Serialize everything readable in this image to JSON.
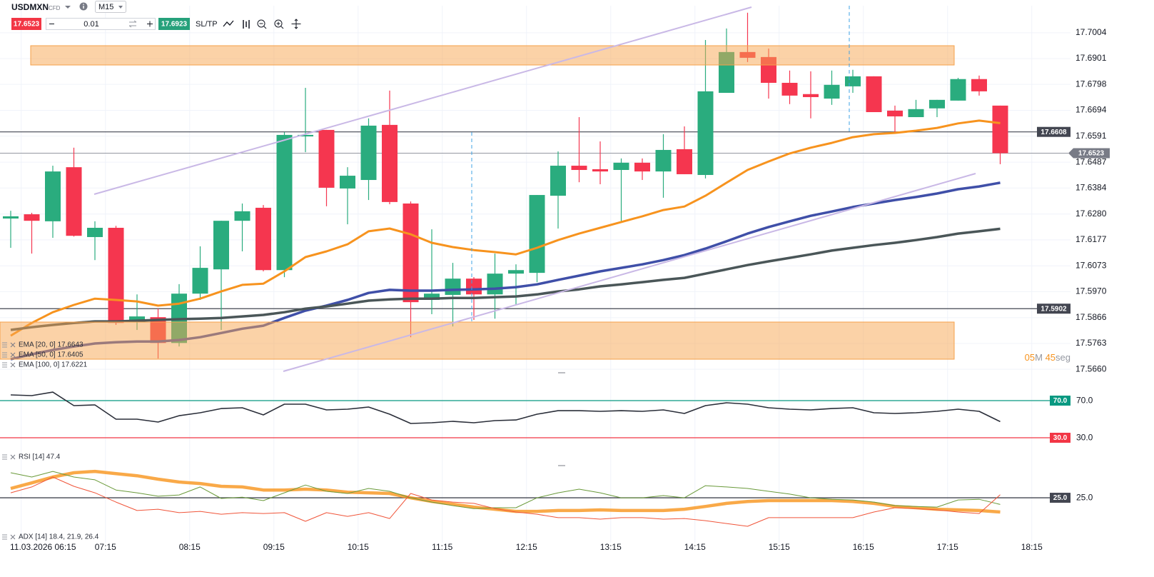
{
  "toolbar": {
    "symbol": "USDMXN",
    "instrument_type": "CFD",
    "timeframe": "M15",
    "sell_price": 17.6523,
    "lot_size": 0.01,
    "buy_price": 17.6923,
    "sl_tp": "SL/TP"
  },
  "countdown": [
    "05",
    "M",
    "45",
    "seg"
  ],
  "chart_data": [
    {
      "type": "candlestick",
      "categories": [
        "11.03.2026 06:15",
        null,
        null,
        null,
        "07:15",
        null,
        null,
        null,
        "08:15",
        null,
        null,
        null,
        "09:15",
        null,
        null,
        null,
        "10:15",
        null,
        null,
        null,
        "11:15",
        null,
        null,
        null,
        "12:15",
        null,
        null,
        null,
        "13:15",
        null,
        null,
        null,
        "14:15",
        null,
        null,
        null,
        "15:15",
        null,
        null,
        null,
        "16:15",
        null,
        null,
        null,
        "17:15",
        null,
        null,
        null,
        "18:15"
      ],
      "open": [
        17.6262,
        17.6279,
        17.6251,
        17.6467,
        17.6188,
        17.6225,
        17.5848,
        17.5868,
        17.5765,
        17.5962,
        17.6059,
        17.6253,
        17.6305,
        17.6056,
        17.659,
        17.6616,
        17.6382,
        17.6416,
        17.6636,
        17.6322,
        17.5937,
        17.5957,
        17.6022,
        17.5959,
        17.6042,
        17.6045,
        17.6353,
        17.6473,
        17.6459,
        17.6456,
        17.6485,
        17.645,
        17.6539,
        17.6436,
        17.6764,
        17.6927,
        17.6907,
        17.6804,
        17.6759,
        17.6741,
        17.679,
        17.683,
        17.6693,
        17.6667,
        17.6702,
        17.6733,
        17.6819,
        17.6713,
        null
      ],
      "high": [
        17.6293,
        17.6285,
        17.6473,
        17.6545,
        17.6251,
        17.6233,
        17.5959,
        17.5902,
        17.6,
        17.6151,
        17.6253,
        17.6322,
        17.6316,
        17.6607,
        17.6784,
        17.6616,
        17.6467,
        17.6662,
        17.6773,
        17.633,
        17.6219,
        17.6085,
        17.6028,
        17.6122,
        17.6079,
        17.6356,
        17.653,
        17.6667,
        17.657,
        17.6502,
        17.6502,
        17.6599,
        17.663,
        17.6975,
        17.7021,
        17.7084,
        17.6941,
        17.6853,
        17.685,
        17.6853,
        17.6856,
        17.683,
        17.6713,
        17.6736,
        17.6736,
        17.6824,
        17.6833,
        17.6713,
        null
      ],
      "low": [
        17.6145,
        17.6122,
        17.6185,
        17.619,
        17.6096,
        17.5837,
        17.5817,
        17.5703,
        17.5751,
        17.5937,
        17.5817,
        17.6131,
        17.6051,
        17.6028,
        17.6527,
        17.6311,
        17.6239,
        17.6336,
        17.6319,
        17.5788,
        17.588,
        17.5831,
        17.5857,
        17.5862,
        17.5919,
        17.6008,
        17.6222,
        17.6407,
        17.6399,
        17.6248,
        17.6416,
        17.6345,
        17.6439,
        17.6422,
        17.6764,
        17.6887,
        17.6741,
        17.6719,
        17.6662,
        17.6716,
        17.6764,
        17.6687,
        17.6604,
        17.6667,
        17.6667,
        17.6733,
        17.6753,
        17.6479,
        null
      ],
      "close": [
        17.6271,
        17.6253,
        17.645,
        17.6193,
        17.6225,
        17.5845,
        17.5871,
        17.5765,
        17.5962,
        17.6065,
        17.6253,
        17.6291,
        17.6056,
        17.6596,
        17.6596,
        17.6385,
        17.6433,
        17.6633,
        17.6328,
        17.5928,
        17.5962,
        17.6022,
        17.5959,
        17.6042,
        17.6056,
        17.6356,
        17.6473,
        17.6456,
        17.645,
        17.6485,
        17.645,
        17.6536,
        17.6439,
        17.677,
        17.6927,
        17.6904,
        17.6804,
        17.6753,
        17.6747,
        17.6796,
        17.683,
        17.6687,
        17.667,
        17.6699,
        17.6736,
        17.6819,
        17.677,
        17.6523,
        null
      ],
      "up_color": "#2aac7e",
      "down_color": "#f5364f",
      "series": [
        {
          "name": "EMA [20, 0] 17.6643",
          "color": "#f7931e",
          "values": [
            17.5794,
            17.5845,
            17.5888,
            17.5917,
            17.5942,
            17.5937,
            17.5931,
            17.5914,
            17.5922,
            17.5942,
            17.5971,
            17.5997,
            17.6002,
            17.6051,
            17.6108,
            17.6131,
            17.6159,
            17.6211,
            17.6222,
            17.6199,
            17.6165,
            17.6148,
            17.6136,
            17.6128,
            17.6119,
            17.6145,
            17.6176,
            17.6202,
            17.6225,
            17.6248,
            17.6271,
            17.6296,
            17.631,
            17.6353,
            17.6405,
            17.6456,
            17.649,
            17.6522,
            17.6545,
            17.6564,
            17.6587,
            17.6599,
            17.6604,
            17.6613,
            17.6624,
            17.6642,
            17.6653,
            17.6643,
            null
          ]
        },
        {
          "name": "EMA [50, 0] 17.6405",
          "color": "#3f4fa8",
          "values": [
            17.57,
            17.572,
            17.5737,
            17.5751,
            17.5763,
            17.5768,
            17.5771,
            17.5771,
            17.5777,
            17.5788,
            17.5805,
            17.5822,
            17.5834,
            17.5865,
            17.5894,
            17.5914,
            17.5937,
            17.5965,
            17.5977,
            17.5974,
            17.5974,
            17.5977,
            17.5979,
            17.5982,
            17.5988,
            17.5999,
            17.6017,
            17.6034,
            17.6051,
            17.6065,
            17.6079,
            17.6096,
            17.6116,
            17.6142,
            17.6171,
            17.6202,
            17.6228,
            17.6251,
            17.6273,
            17.629,
            17.6308,
            17.6322,
            17.6336,
            17.6348,
            17.6362,
            17.6379,
            17.639,
            17.6405,
            null
          ]
        },
        {
          "name": "EMA [100, 0] 17.6221",
          "color": "#4a5658",
          "values": [
            17.5817,
            17.5828,
            17.5837,
            17.5845,
            17.5851,
            17.5851,
            17.5854,
            17.5857,
            17.586,
            17.5862,
            17.5865,
            17.5871,
            17.5877,
            17.5888,
            17.5902,
            17.5911,
            17.5922,
            17.5934,
            17.5939,
            17.5942,
            17.5942,
            17.5945,
            17.5945,
            17.5948,
            17.5951,
            17.5959,
            17.5971,
            17.5979,
            17.5991,
            17.5999,
            17.6008,
            17.6017,
            17.6025,
            17.6042,
            17.6059,
            17.6076,
            17.6091,
            17.6105,
            17.6119,
            17.6134,
            17.6145,
            17.6156,
            17.6165,
            17.6176,
            17.6188,
            17.6202,
            17.6211,
            17.6221,
            null
          ]
        }
      ],
      "ylim": [
        17.5646,
        17.7112
      ],
      "yticks": [
        17.7004,
        17.6901,
        17.6798,
        17.6694,
        17.6591,
        17.6487,
        17.6384,
        {
          "value": 17.628,
          "label": "17.6280"
        },
        17.6177,
        17.6073,
        {
          "value": 17.597,
          "label": "17.5970"
        },
        17.5866,
        17.5763,
        {
          "value": 17.566,
          "label": "17.5660"
        }
      ],
      "grid": true,
      "price_lines": [
        17.6608,
        17.5902
      ],
      "last_price": 17.6523
    },
    {
      "type": "line",
      "series": [
        {
          "name": "RSI [14] 47.4",
          "color": "#2a2e39",
          "values": [
            76.2,
            75.4,
            79.2,
            64.6,
            65.4,
            50,
            50,
            46.9,
            53.8,
            56.9,
            61.5,
            62.3,
            54.6,
            66.2,
            66.2,
            60,
            60.8,
            63.1,
            55.4,
            45.4,
            46.2,
            47.7,
            46.2,
            48.5,
            49.2,
            55.4,
            59.2,
            59.2,
            58.5,
            59.2,
            58.5,
            60,
            56.2,
            64.6,
            67.7,
            66.2,
            62.3,
            60.8,
            60,
            61.5,
            62.3,
            56.9,
            56.2,
            56.9,
            58.5,
            60.8,
            58.5,
            47.4,
            null
          ]
        }
      ],
      "ylim": [
        15.4,
        97.7
      ],
      "levels": [
        {
          "value": 70,
          "label": "70.0",
          "color": "#089981"
        },
        {
          "value": 30,
          "label": "30.0",
          "color": "#f23645"
        }
      ]
    },
    {
      "type": "line",
      "legend": "ADX [14] 18.4, 21.9, 26.4",
      "series": [
        {
          "color": "#f7931a",
          "values": [
            29.3,
            31.9,
            34.6,
            36.6,
            37.2,
            36.2,
            35.2,
            33.6,
            32.3,
            31.6,
            30.3,
            30,
            28.6,
            28.6,
            29,
            28.6,
            27.6,
            27.3,
            27,
            25,
            23.3,
            22,
            20.7,
            19.7,
            18.7,
            18.7,
            19.1,
            19.1,
            19.4,
            19.1,
            19.1,
            19.1,
            19.7,
            21,
            22.4,
            23.3,
            23.7,
            23.7,
            23.7,
            23.7,
            23.3,
            22.4,
            21,
            20.4,
            19.7,
            19.4,
            19.1,
            18.4,
            null
          ]
        },
        {
          "color": "#6a9a3a",
          "values": [
            36.6,
            34.6,
            37.2,
            34.6,
            33.3,
            28.6,
            27.3,
            25.7,
            26.3,
            30,
            24.7,
            25.3,
            23.7,
            27.3,
            30.9,
            28,
            27,
            29.3,
            28,
            25,
            23,
            21.4,
            20,
            20.4,
            20.4,
            25,
            27.3,
            29,
            27.3,
            25,
            25,
            26,
            25,
            30.6,
            30,
            29.3,
            28,
            26.7,
            25,
            24.3,
            24,
            23,
            21.4,
            21,
            20.7,
            24,
            24.3,
            21.9,
            null
          ]
        },
        {
          "color": "#f0553a",
          "values": [
            27.3,
            30,
            34.6,
            30.3,
            27.3,
            23,
            19.1,
            19.7,
            18.1,
            18.7,
            17.4,
            18.1,
            17.7,
            18.1,
            14.1,
            18.1,
            16.4,
            18.1,
            15.4,
            27,
            24,
            23,
            22.4,
            20,
            18.4,
            17.4,
            15.8,
            15.8,
            15.1,
            15.8,
            15.8,
            15.1,
            15.4,
            14.4,
            13.1,
            11.8,
            15.8,
            15.8,
            15.8,
            15.8,
            15.8,
            18.4,
            20.4,
            20,
            19.4,
            18.4,
            17.7,
            26.4,
            null
          ]
        }
      ],
      "ylim": [
        4.2,
        38.9
      ],
      "levels": [
        {
          "value": 25,
          "label": "25.0",
          "color": "#434651"
        }
      ]
    }
  ]
}
